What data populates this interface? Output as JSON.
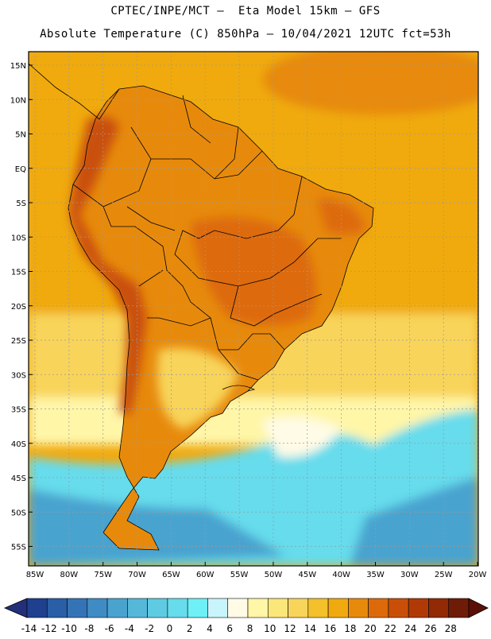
{
  "title_line1": "CPTEC/INPE/MCT –  Eta Model 15km – GFS",
  "title_line2": "Absolute Temperature (C) 850hPa – 10/04/2021 12UTC fct=53h",
  "lat_labels": [
    "15N",
    "10N",
    "5N",
    "EQ",
    "5S",
    "10S",
    "15S",
    "20S",
    "25S",
    "30S",
    "35S",
    "40S",
    "45S",
    "50S",
    "55S"
  ],
  "lon_labels": [
    "85W",
    "80W",
    "75W",
    "70W",
    "65W",
    "60W",
    "55W",
    "50W",
    "45W",
    "40W",
    "35W",
    "30W",
    "25W",
    "20W"
  ],
  "colorbar": {
    "labels": [
      "-14",
      "-12",
      "-10",
      "-8",
      "-6",
      "-4",
      "-2",
      "0",
      "2",
      "4",
      "6",
      "8",
      "10",
      "12",
      "14",
      "16",
      "18",
      "20",
      "22",
      "24",
      "26",
      "28"
    ],
    "colors": [
      "#1f3f8f",
      "#2a5ea6",
      "#3474b6",
      "#3f8cc4",
      "#4aa3cf",
      "#55b8d9",
      "#5fcbe2",
      "#66dcec",
      "#6ef0f6",
      "#c8f4fb",
      "#fffbe6",
      "#fff6a8",
      "#fbe67a",
      "#f8d45a",
      "#f4c02c",
      "#f0aa10",
      "#e78a0c",
      "#dd6a0a",
      "#c94f08",
      "#b03a06",
      "#922a06",
      "#6e1c08"
    ],
    "under_color": "#22307a",
    "over_color": "#5a1008"
  },
  "map_colors": {
    "ocean_north": "#f0aa10",
    "ocean_mid": "#f8d45a",
    "ocean_cool": "#fff6a8",
    "ocean_cold": "#66dcec",
    "ocean_colder": "#4aa3cf",
    "land_warm": "#e78a0c",
    "land_hot": "#dd6a0a",
    "andes_hot": "#c94f08"
  }
}
